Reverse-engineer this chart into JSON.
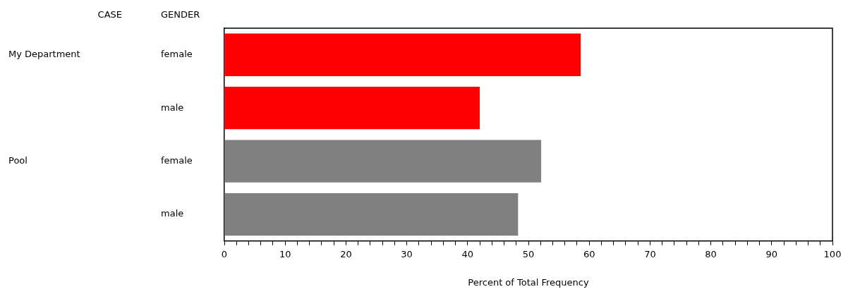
{
  "chart_data": {
    "type": "bar",
    "orientation": "horizontal",
    "legend_title": "CASE",
    "ylabel": "GENDER",
    "xlabel": "Percent of Total Frequency",
    "categories": [
      "female",
      "male",
      "female",
      "male"
    ],
    "series": [
      {
        "color": "#ff0000",
        "values": [
          58.6,
          42.0,
          null,
          null
        ]
      },
      {
        "color": "#808080",
        "values": [
          null,
          null,
          52.1,
          48.3
        ]
      }
    ],
    "annotations": [
      "My Department",
      "Pool"
    ],
    "xlim": [
      0,
      100
    ],
    "xticks": [
      0,
      {
        "value": 2,
        "label": null
      },
      {
        "value": 4,
        "label": null
      },
      {
        "value": 6,
        "label": null
      },
      {
        "value": 8,
        "label": null
      },
      10,
      {
        "value": 12,
        "label": null
      },
      {
        "value": 14,
        "label": null
      },
      {
        "value": 16,
        "label": null
      },
      {
        "value": 18,
        "label": null
      },
      20,
      {
        "value": 22,
        "label": null
      },
      {
        "value": 24,
        "label": null
      },
      {
        "value": 26,
        "label": null
      },
      {
        "value": 28,
        "label": null
      },
      30,
      {
        "value": 32,
        "label": null
      },
      {
        "value": 34,
        "label": null
      },
      {
        "value": 36,
        "label": null
      },
      {
        "value": 38,
        "label": null
      },
      40,
      {
        "value": 42,
        "label": null
      },
      {
        "value": 44,
        "label": null
      },
      {
        "value": 46,
        "label": null
      },
      {
        "value": 48,
        "label": null
      },
      50,
      {
        "value": 52,
        "label": null
      },
      {
        "value": 54,
        "label": null
      },
      {
        "value": 56,
        "label": null
      },
      {
        "value": 58,
        "label": null
      },
      60,
      {
        "value": 62,
        "label": null
      },
      {
        "value": 64,
        "label": null
      },
      {
        "value": 66,
        "label": null
      },
      {
        "value": 68,
        "label": null
      },
      70,
      {
        "value": 72,
        "label": null
      },
      {
        "value": 74,
        "label": null
      },
      {
        "value": 76,
        "label": null
      },
      {
        "value": 78,
        "label": null
      },
      80,
      {
        "value": 82,
        "label": null
      },
      {
        "value": 84,
        "label": null
      },
      {
        "value": 86,
        "label": null
      },
      {
        "value": 88,
        "label": null
      },
      90,
      {
        "value": 92,
        "label": null
      },
      {
        "value": 94,
        "label": null
      },
      {
        "value": 96,
        "label": null
      },
      {
        "value": 98,
        "label": null
      },
      100
    ],
    "grid": false,
    "legend": false
  }
}
